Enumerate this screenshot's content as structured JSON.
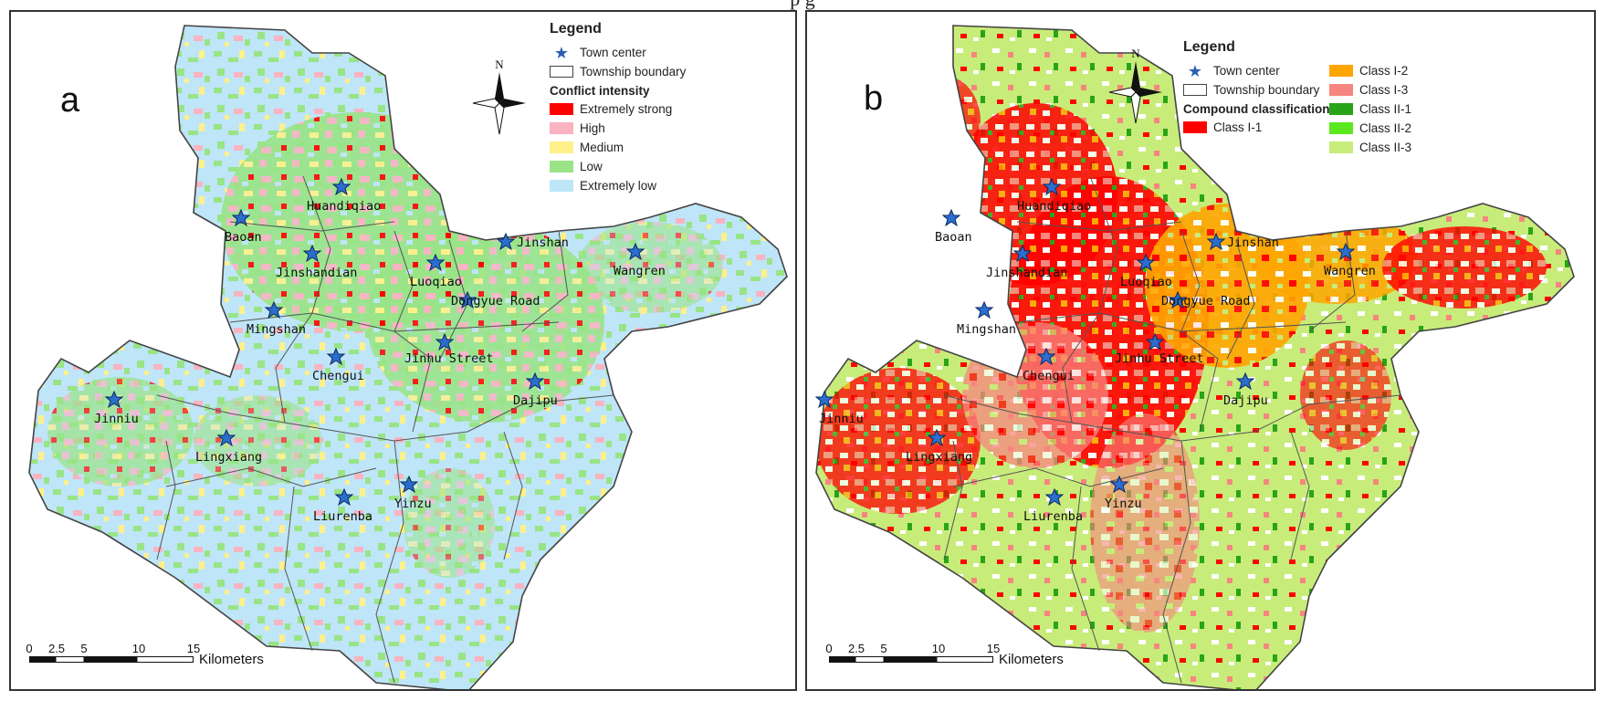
{
  "caption": "p                    g",
  "panels": [
    {
      "letter": "a",
      "legend": {
        "title": "Legend",
        "town_center": "Town center",
        "township_boundary": "Township boundary",
        "section_title": "Conflict intensity",
        "classes": [
          {
            "label": "Extremely strong",
            "color": "#ff0000"
          },
          {
            "label": "High",
            "color": "#f9b3c1"
          },
          {
            "label": "Medium",
            "color": "#fff08a"
          },
          {
            "label": "Low",
            "color": "#98e486"
          },
          {
            "label": "Extremely low",
            "color": "#bfe5f8"
          }
        ]
      },
      "north_label": "N",
      "towns": [
        "Huandiqiao",
        "Baoan",
        "Jinshan",
        "Wangren",
        "Jinshandian",
        "Luoqiao",
        "Dongyue Road",
        "Mingshan",
        "Jinhu Street",
        "Chengui",
        "Dajipu",
        "Jinniu",
        "Lingxiang",
        "Yinzu",
        "Liurenba"
      ],
      "scalebar": {
        "ticks": [
          "0",
          "2.5",
          "5",
          "10",
          "15"
        ],
        "unit": "Kilometers"
      }
    },
    {
      "letter": "b",
      "legend": {
        "title": "Legend",
        "town_center": "Town center",
        "township_boundary": "Township boundary",
        "section_title": "Compound classification",
        "classes": [
          {
            "label": "Class I-1",
            "color": "#ff0000"
          },
          {
            "label": "Class I-2",
            "color": "#ffa500"
          },
          {
            "label": "Class I-3",
            "color": "#f7857f"
          },
          {
            "label": "Class II-1",
            "color": "#28a418"
          },
          {
            "label": "Class II-2",
            "color": "#5ce81e"
          },
          {
            "label": "Class II-3",
            "color": "#c8ec7a"
          }
        ]
      },
      "north_label": "N",
      "towns": [
        "Huandiqiao",
        "Baoan",
        "Jinshan",
        "Wangren",
        "Jinshandian",
        "Luoqiao",
        "Dongyue Road",
        "Mingshan",
        "Jinhu Street",
        "Chengui",
        "Dajipu",
        "Jinniu",
        "Lingxiang",
        "Yinzu",
        "Liurenba"
      ],
      "scalebar": {
        "ticks": [
          "0",
          "2.5",
          "5",
          "10",
          "15"
        ],
        "unit": "Kilometers"
      }
    }
  ],
  "colors": {
    "town_star": "#2b6ecf",
    "boundary": "#555555"
  }
}
